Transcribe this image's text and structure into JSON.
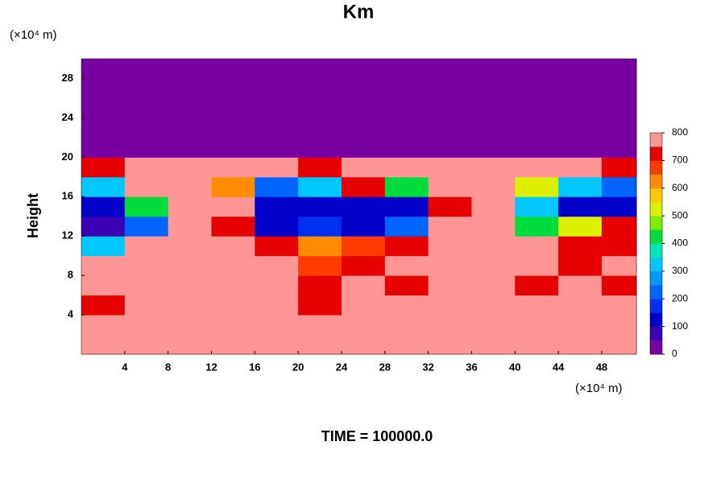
{
  "chart_data": {
    "type": "contour",
    "title": "Km",
    "xlabel": "(×10⁴ m)",
    "ylabel": "Height",
    "yunit": "(×10⁴ m)",
    "footer": "TIME = 100000.0",
    "xlim": [
      0,
      51.2
    ],
    "ylim": [
      0,
      30
    ],
    "xticks": [
      4,
      8,
      12,
      16,
      20,
      24,
      28,
      32,
      36,
      40,
      44,
      48
    ],
    "yticks": [
      4,
      8,
      12,
      16,
      20,
      24,
      28
    ],
    "x": [
      2,
      6,
      10,
      14,
      18,
      22,
      26,
      30,
      34,
      38,
      42,
      46,
      50
    ],
    "y": [
      1,
      3,
      5,
      7,
      9,
      11,
      13,
      15,
      17,
      19,
      21,
      23,
      25,
      27,
      29
    ],
    "z": [
      [
        800,
        800,
        800,
        800,
        800,
        800,
        800,
        800,
        800,
        800,
        800,
        800,
        800
      ],
      [
        800,
        800,
        800,
        800,
        800,
        800,
        800,
        800,
        800,
        800,
        800,
        800,
        800
      ],
      [
        700,
        800,
        800,
        800,
        800,
        700,
        800,
        800,
        800,
        800,
        800,
        750,
        800
      ],
      [
        800,
        800,
        800,
        800,
        800,
        700,
        800,
        700,
        800,
        800,
        700,
        800,
        700
      ],
      [
        800,
        800,
        800,
        800,
        800,
        650,
        700,
        800,
        800,
        800,
        800,
        700,
        800
      ],
      [
        300,
        800,
        800,
        800,
        700,
        600,
        650,
        700,
        800,
        800,
        800,
        700,
        700
      ],
      [
        50,
        200,
        800,
        700,
        100,
        150,
        100,
        200,
        800,
        800,
        400,
        500,
        700
      ],
      [
        100,
        400,
        800,
        800,
        100,
        100,
        100,
        100,
        700,
        800,
        300,
        100,
        100
      ],
      [
        300,
        800,
        800,
        600,
        200,
        300,
        700,
        400,
        800,
        800,
        500,
        300,
        200
      ],
      [
        700,
        800,
        800,
        750,
        800,
        700,
        800,
        800,
        750,
        800,
        800,
        800,
        700
      ],
      [
        0,
        0,
        0,
        0,
        0,
        0,
        0,
        0,
        0,
        0,
        0,
        0,
        0
      ],
      [
        0,
        0,
        0,
        0,
        0,
        0,
        0,
        0,
        0,
        0,
        0,
        0,
        0
      ],
      [
        0,
        0,
        0,
        0,
        0,
        0,
        0,
        0,
        0,
        0,
        0,
        0,
        0
      ],
      [
        0,
        0,
        0,
        0,
        0,
        0,
        0,
        0,
        0,
        0,
        0,
        0,
        0
      ],
      [
        0,
        0,
        0,
        0,
        0,
        0,
        0,
        0,
        0,
        0,
        0,
        0,
        0
      ]
    ],
    "levels": [
      0,
      50,
      100,
      150,
      200,
      250,
      300,
      350,
      400,
      450,
      500,
      550,
      600,
      650,
      700,
      750,
      800
    ],
    "colors": [
      "#7800a0",
      "#3c00b4",
      "#0000c8",
      "#0030f0",
      "#0064ff",
      "#0096ff",
      "#00c8ff",
      "#00e6b4",
      "#00dc3c",
      "#78f000",
      "#dcf000",
      "#ffc800",
      "#ff8c00",
      "#ff3c00",
      "#e60000",
      "#ff9696"
    ],
    "cbticks": [
      0,
      100,
      200,
      300,
      400,
      500,
      600,
      700,
      800
    ]
  }
}
